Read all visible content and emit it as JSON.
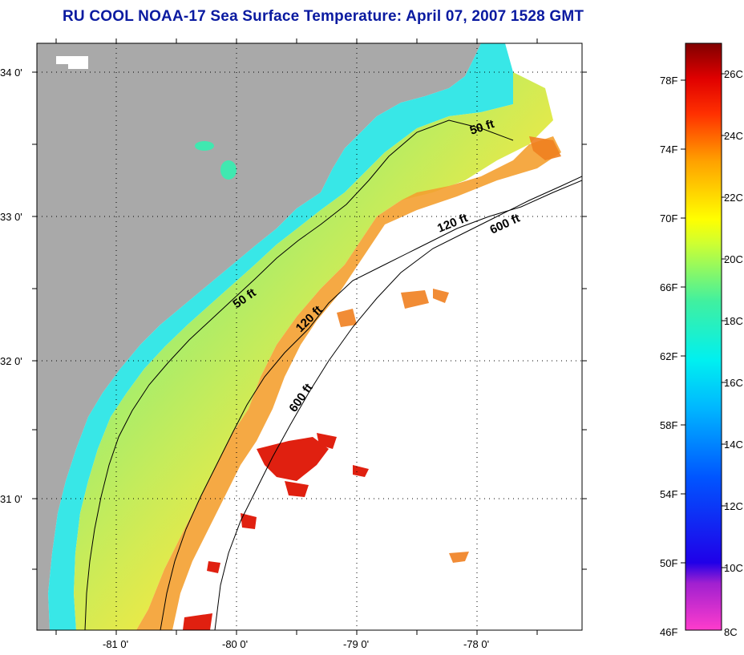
{
  "title": "RU COOL  NOAA-17  Sea Surface Temperature:  April 07, 2007 1528 GMT",
  "map": {
    "lat_labels": [
      "34 0'",
      "33 0'",
      "32 0'",
      "31 0'"
    ],
    "lon_labels": [
      "-81 0'",
      "-80 0'",
      "-79 0'",
      "-78 0'"
    ],
    "isobath_labels": [
      "50 ft",
      "50 ft",
      "120 ft",
      "120 ft",
      "600 ft",
      "600 ft"
    ],
    "colors": {
      "land": "#a9a9a9",
      "no_data": "#ffffff",
      "grid": "#000000"
    }
  },
  "colorbar": {
    "fahrenheit_labels": [
      "78F",
      "74F",
      "70F",
      "66F",
      "62F",
      "58F",
      "54F",
      "50F",
      "46F"
    ],
    "celsius_labels": [
      "26C",
      "24C",
      "22C",
      "20C",
      "18C",
      "16C",
      "14C",
      "12C",
      "10C",
      "8C"
    ],
    "min_c": 8,
    "max_c": 27
  }
}
